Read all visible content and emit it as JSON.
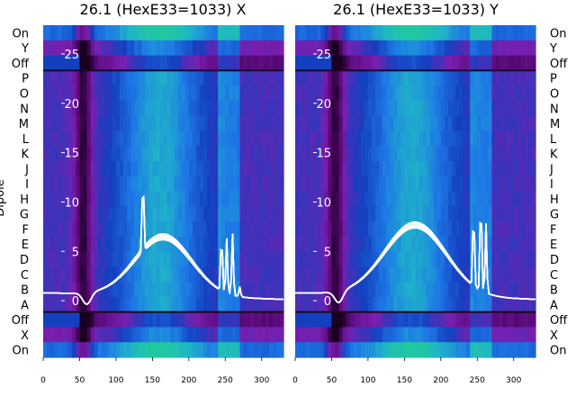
{
  "chart_data": [
    {
      "type": "heatmap",
      "title": "26.1 (HexE33=1033) X",
      "ylabel": "Dipole",
      "categories": [
        "On",
        "Y",
        "Off",
        "P",
        "O",
        "N",
        "M",
        "L",
        "K",
        "J",
        "I",
        "H",
        "G",
        "F",
        "E",
        "D",
        "C",
        "B",
        "A",
        "Off",
        "X",
        "On"
      ],
      "xlim": [
        0,
        330
      ],
      "xticks": [
        0,
        50,
        100,
        150,
        200,
        250,
        300
      ],
      "overlay_yticks": [
        0,
        5,
        10,
        15,
        20,
        25
      ],
      "overlay_ylim": [
        -3,
        27
      ],
      "spectrum": {
        "baseline": 0.8,
        "dip_x": 60,
        "dip_depth": -1.2,
        "hump_center": 165,
        "hump_peak": 6.3,
        "hump_width": 55,
        "spikes": [
          {
            "x": 137,
            "y": 9.5
          },
          {
            "x": 245,
            "y": 8
          },
          {
            "x": 252,
            "y": 7.5
          },
          {
            "x": 260,
            "y": 8.2
          },
          {
            "x": 270,
            "y": 3
          }
        ]
      },
      "colorscale": [
        "#1a0020",
        "#5a0a7a",
        "#7a1fb0",
        "#1440c0",
        "#1e78e6",
        "#1fb4c8",
        "#20c8a0"
      ]
    },
    {
      "type": "heatmap",
      "title": "26.1 (HexE33=1033) Y",
      "ylabel": "",
      "categories": [
        "On",
        "Y",
        "Off",
        "P",
        "O",
        "N",
        "M",
        "L",
        "K",
        "J",
        "I",
        "H",
        "G",
        "F",
        "E",
        "D",
        "C",
        "B",
        "A",
        "Off",
        "X",
        "On"
      ],
      "xlim": [
        0,
        330
      ],
      "xticks": [
        0,
        50,
        100,
        150,
        200,
        250,
        300
      ],
      "overlay_yticks": [
        0,
        5,
        10,
        15,
        20,
        25
      ],
      "overlay_ylim": [
        -3,
        27
      ],
      "spectrum": {
        "baseline": 0.8,
        "dip_x": 60,
        "dip_depth": -1.2,
        "hump_center": 165,
        "hump_peak": 7.5,
        "hump_width": 60,
        "spikes": [
          {
            "x": 245,
            "y": 10
          },
          {
            "x": 255,
            "y": 12
          },
          {
            "x": 262,
            "y": 9
          }
        ]
      },
      "colorscale": [
        "#1a0020",
        "#5a0a7a",
        "#7a1fb0",
        "#1440c0",
        "#1e78e6",
        "#1fb4c8",
        "#20c8a0"
      ]
    }
  ]
}
